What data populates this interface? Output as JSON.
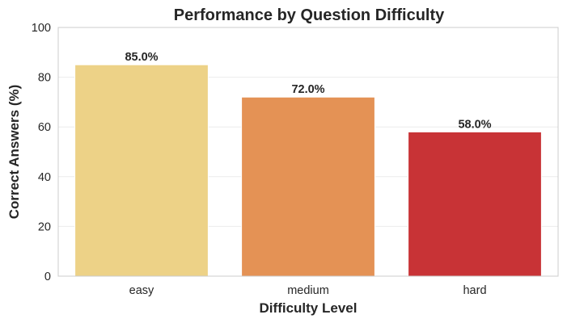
{
  "chart_data": {
    "type": "bar",
    "title": "Performance by Question Difficulty",
    "xlabel": "Difficulty Level",
    "ylabel": "Correct Answers (%)",
    "categories": [
      "easy",
      "medium",
      "hard"
    ],
    "values": [
      85.0,
      72.0,
      58.0
    ],
    "data_labels": [
      "85.0%",
      "72.0%",
      "58.0%"
    ],
    "ylim": [
      0,
      100
    ],
    "yticks": [
      0,
      20,
      40,
      60,
      80,
      100
    ],
    "ytick_labels": [
      "0",
      "20",
      "40",
      "60",
      "80",
      "100"
    ],
    "colors": [
      "#edd287",
      "#e49255",
      "#c83336"
    ],
    "grid": "y-major",
    "legend": "none"
  }
}
